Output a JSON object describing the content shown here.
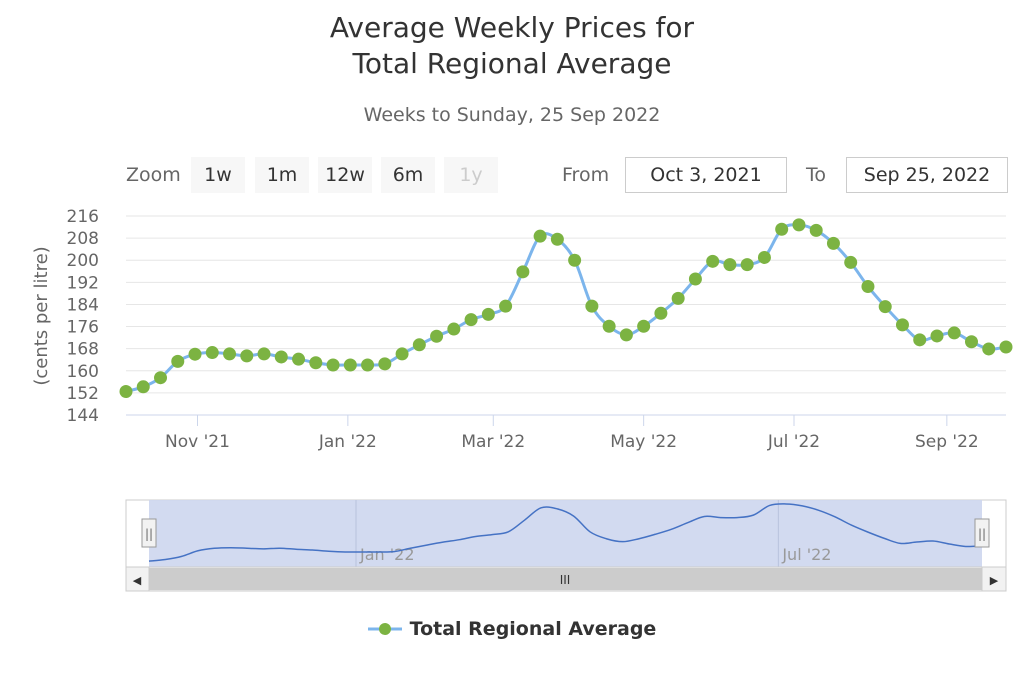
{
  "chart_data": {
    "type": "line",
    "title": [
      "Average Weekly Prices for",
      "Total Regional Average"
    ],
    "subtitle": "Weeks to Sunday, 25 Sep 2022",
    "ylabel": "(cents per litre)",
    "xlabel": "",
    "ylim": [
      144,
      216
    ],
    "yticks": [
      "216",
      "208",
      "200",
      "192",
      "184",
      "176",
      "168",
      "160",
      "152",
      "144"
    ],
    "xtick_labels": [
      "Nov '21",
      "Jan '22",
      "Mar '22",
      "May '22",
      "Jul '22",
      "Sep '22"
    ],
    "x_start": "2021-10-03",
    "x_end": "2022-09-25",
    "x_step": "1 week",
    "series": [
      {
        "name": "Total Regional Average",
        "color": "#7cb342",
        "line_color": "#7cb5ec",
        "values": [
          152.5,
          154.2,
          157.5,
          163.4,
          166.0,
          166.6,
          166.1,
          165.4,
          166.1,
          165.0,
          164.2,
          162.9,
          162.1,
          162.1,
          162.1,
          162.5,
          166.1,
          169.4,
          172.5,
          175.1,
          178.5,
          180.4,
          183.4,
          195.8,
          208.7,
          207.6,
          200.0,
          183.4,
          176.1,
          173.0,
          176.1,
          180.8,
          186.2,
          193.2,
          199.6,
          198.4,
          198.4,
          201.0,
          211.2,
          212.8,
          210.8,
          206.1,
          199.2,
          190.5,
          183.2,
          176.6,
          171.2,
          172.6,
          173.7,
          170.5,
          167.9,
          168.6
        ]
      }
    ]
  },
  "controls": {
    "zoom_label": "Zoom",
    "zoom_buttons": [
      "1w",
      "1m",
      "12w",
      "6m",
      "1y"
    ],
    "from_label": "From",
    "from_value": "Oct 3, 2021",
    "to_label": "To",
    "to_value": "Sep 25, 2022"
  },
  "navigator": {
    "xtick_labels": [
      "Jan '22",
      "Jul '22"
    ],
    "scroll_grip": "III",
    "handle_grip": "||",
    "left_arrow": "◀",
    "right_arrow": "▶"
  },
  "colors": {
    "marker": "#7cb342",
    "line": "#7cb5ec",
    "navigator_fill": "#cdd6ee",
    "navigator_line": "#4572c4"
  }
}
